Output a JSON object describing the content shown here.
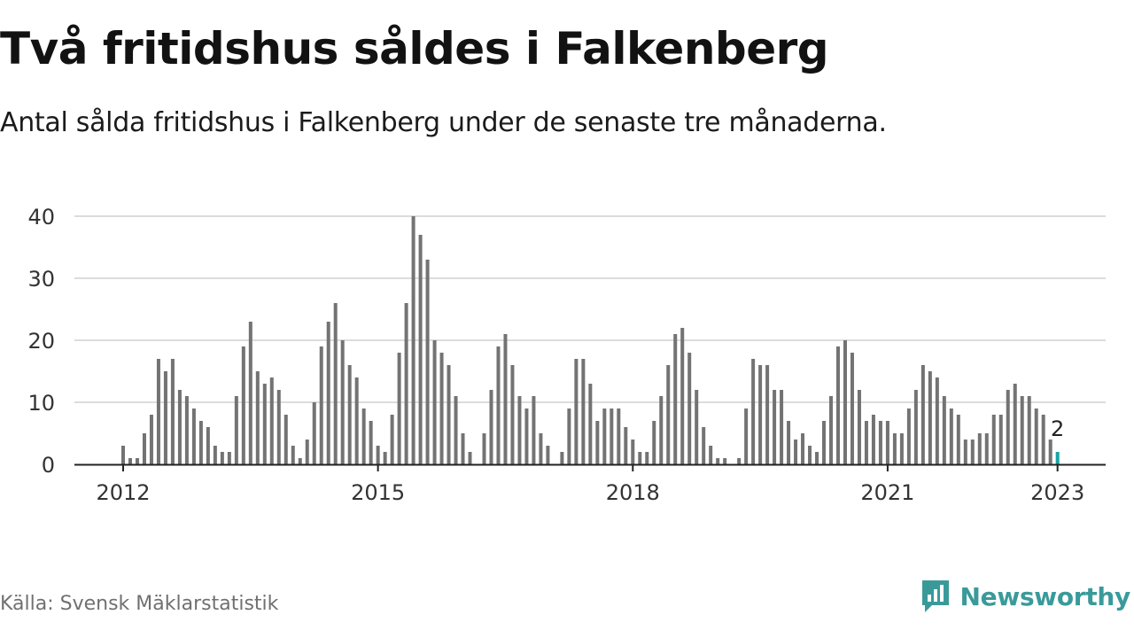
{
  "title": "Två fritidshus såldes i Falkenberg",
  "subtitle": "Antal sålda fritidshus i Falkenberg under de senaste tre månaderna.",
  "source": "Källa: Svensk Mäklarstatistik",
  "brand": "Newsworthy",
  "colors": {
    "bar": "#737373",
    "highlight": "#17a3a3",
    "grid": "#dcdcdc",
    "axis": "#222222",
    "brand": "#3a9a9a"
  },
  "chart_data": {
    "type": "bar",
    "start": "2012-01",
    "frequency": "monthly",
    "x_ticks": [
      "2012",
      "2015",
      "2018",
      "2021",
      "2023"
    ],
    "y_ticks": [
      0,
      10,
      20,
      30,
      40
    ],
    "ylim": [
      0,
      40
    ],
    "grid": true,
    "highlight_last": true,
    "last_label": "2",
    "values": [
      3,
      1,
      1,
      5,
      8,
      17,
      15,
      17,
      12,
      11,
      9,
      7,
      6,
      3,
      2,
      2,
      11,
      19,
      23,
      15,
      13,
      14,
      12,
      8,
      3,
      1,
      4,
      10,
      19,
      23,
      26,
      20,
      16,
      14,
      9,
      7,
      3,
      2,
      8,
      18,
      26,
      40,
      37,
      33,
      20,
      18,
      16,
      11,
      5,
      2,
      0,
      5,
      12,
      19,
      21,
      16,
      11,
      9,
      11,
      5,
      3,
      0,
      2,
      9,
      17,
      17,
      13,
      7,
      9,
      9,
      9,
      6,
      4,
      2,
      2,
      7,
      11,
      16,
      21,
      22,
      18,
      12,
      6,
      3,
      1,
      1,
      0,
      1,
      9,
      17,
      16,
      16,
      12,
      12,
      7,
      4,
      5,
      3,
      2,
      7,
      11,
      19,
      20,
      18,
      12,
      7,
      8,
      7,
      7,
      5,
      5,
      9,
      12,
      16,
      15,
      14,
      11,
      9,
      8,
      4,
      4,
      5,
      5,
      8,
      8,
      12,
      13,
      11,
      11,
      9,
      8,
      4,
      2
    ]
  }
}
